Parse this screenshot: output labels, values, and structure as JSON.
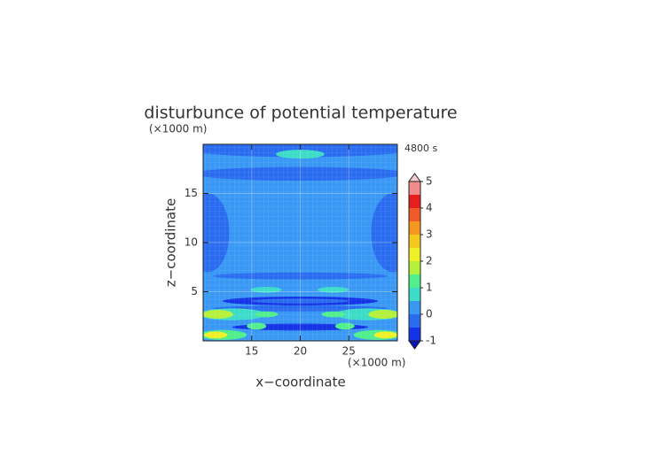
{
  "chart_data": {
    "type": "contour",
    "title": "disturbunce of potential temperature",
    "x_label": "x−coordinate",
    "y_label": "z−coordinate",
    "x_unit": "(×1000 m)",
    "y_unit": "(×1000 m)",
    "time_label": "4800 s",
    "xlim": [
      10,
      30
    ],
    "xticks": [
      15,
      20,
      25
    ],
    "ylim": [
      0,
      20
    ],
    "yticks": [
      5,
      10,
      15
    ],
    "grid": true,
    "colorbar": {
      "levels": [
        -1,
        -0.5,
        0,
        0.5,
        1,
        1.5,
        2,
        2.5,
        3,
        3.5,
        4,
        4.5,
        5
      ],
      "colors": [
        "#1432e6",
        "#2a6cf0",
        "#3a98f5",
        "#3cdcc8",
        "#50ee8c",
        "#b4f03c",
        "#f0f028",
        "#f5c81e",
        "#f5961e",
        "#f05a28",
        "#e61e1e",
        "#f08c8c"
      ],
      "under_color": "#0a14b4",
      "over_color": "#f5cccc",
      "ticks": [
        -1,
        0,
        1,
        2,
        3,
        4,
        5
      ]
    }
  }
}
